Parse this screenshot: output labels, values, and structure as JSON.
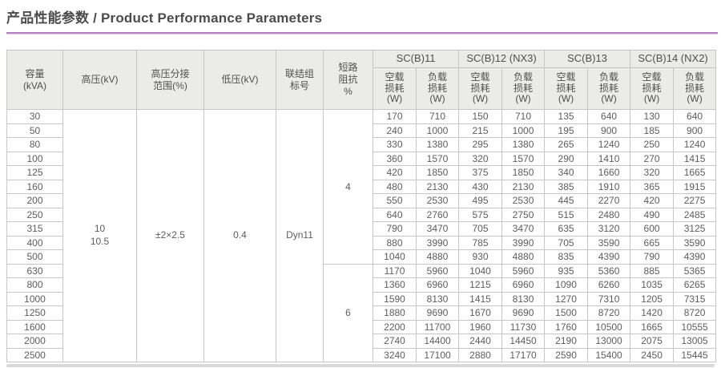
{
  "header": {
    "title": "产品性能参数 / Product Performance Parameters",
    "underline_color": "#b183bf"
  },
  "table": {
    "col_headers": [
      "容量\n(kVA)",
      "高压(kV)",
      "高压分接\n范围(%)",
      "低压(kV)",
      "联结组\n标号",
      "短路\n阻抗\n%"
    ],
    "groups": [
      {
        "label": "SC(B)11"
      },
      {
        "label": "SC(B)12 (NX3)"
      },
      {
        "label": "SC(B)13"
      },
      {
        "label": "SC(B)14 (NX2)"
      }
    ],
    "subheader": {
      "no_load": "空载\n损耗\n(W)",
      "load": "负载\n损耗\n(W)"
    },
    "merged": {
      "hv": "10\n10.5",
      "tap": "±2×2.5",
      "lv": "0.4",
      "vector": "Dyn11"
    },
    "impedance_groups": [
      {
        "value": "4",
        "rows": 11
      },
      {
        "value": "6",
        "rows": 7
      }
    ],
    "rows": [
      {
        "capacity": "30",
        "losses": [
          "170",
          "710",
          "150",
          "710",
          "135",
          "640",
          "130",
          "640"
        ]
      },
      {
        "capacity": "50",
        "losses": [
          "240",
          "1000",
          "215",
          "1000",
          "195",
          "900",
          "185",
          "900"
        ]
      },
      {
        "capacity": "80",
        "losses": [
          "330",
          "1380",
          "295",
          "1380",
          "265",
          "1240",
          "250",
          "1240"
        ]
      },
      {
        "capacity": "100",
        "losses": [
          "360",
          "1570",
          "320",
          "1570",
          "290",
          "1410",
          "270",
          "1415"
        ]
      },
      {
        "capacity": "125",
        "losses": [
          "420",
          "1850",
          "375",
          "1850",
          "340",
          "1660",
          "320",
          "1665"
        ]
      },
      {
        "capacity": "160",
        "losses": [
          "480",
          "2130",
          "430",
          "2130",
          "385",
          "1910",
          "365",
          "1915"
        ]
      },
      {
        "capacity": "200",
        "losses": [
          "550",
          "2530",
          "495",
          "2530",
          "445",
          "2270",
          "420",
          "2275"
        ]
      },
      {
        "capacity": "250",
        "losses": [
          "640",
          "2760",
          "575",
          "2750",
          "515",
          "2480",
          "490",
          "2485"
        ]
      },
      {
        "capacity": "315",
        "losses": [
          "790",
          "3470",
          "705",
          "3470",
          "635",
          "3120",
          "600",
          "3125"
        ]
      },
      {
        "capacity": "400",
        "losses": [
          "880",
          "3990",
          "785",
          "3990",
          "705",
          "3590",
          "665",
          "3590"
        ]
      },
      {
        "capacity": "500",
        "losses": [
          "1040",
          "4880",
          "930",
          "4880",
          "835",
          "4390",
          "790",
          "4390"
        ]
      },
      {
        "capacity": "630",
        "losses": [
          "1170",
          "5960",
          "1040",
          "5960",
          "935",
          "5360",
          "885",
          "5365"
        ]
      },
      {
        "capacity": "800",
        "losses": [
          "1360",
          "6960",
          "1215",
          "6960",
          "1090",
          "6260",
          "1035",
          "6265"
        ]
      },
      {
        "capacity": "1000",
        "losses": [
          "1590",
          "8130",
          "1415",
          "8130",
          "1270",
          "7310",
          "1205",
          "7315"
        ]
      },
      {
        "capacity": "1250",
        "losses": [
          "1880",
          "9690",
          "1670",
          "9690",
          "1500",
          "8720",
          "1420",
          "8720"
        ]
      },
      {
        "capacity": "1600",
        "losses": [
          "2200",
          "11700",
          "1960",
          "11730",
          "1760",
          "10500",
          "1665",
          "10555"
        ]
      },
      {
        "capacity": "2000",
        "losses": [
          "2740",
          "14400",
          "2440",
          "14450",
          "2190",
          "13000",
          "2075",
          "13005"
        ]
      },
      {
        "capacity": "2500",
        "losses": [
          "3240",
          "17100",
          "2880",
          "17170",
          "2590",
          "15400",
          "2450",
          "15445"
        ]
      }
    ]
  }
}
